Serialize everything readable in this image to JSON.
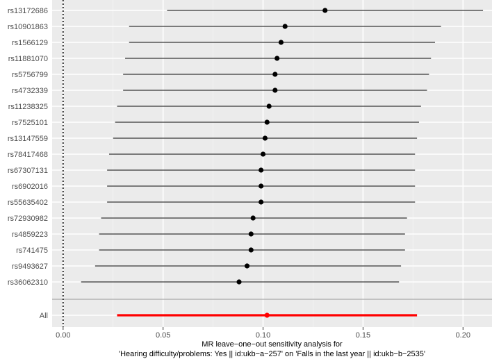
{
  "chart_data": {
    "type": "forest",
    "xlabel_line1": "MR leave−one−out sensitivity analysis for",
    "xlabel_line2": "'Hearing difficulty/problems: Yes || id:ukb−a−257' on 'Falls in the last year || id:ukb−b−2535'",
    "x_ticks": [
      0.0,
      0.05,
      0.1,
      0.15,
      0.2
    ],
    "x_tick_labels": [
      "0.00",
      "0.05",
      "0.10",
      "0.15",
      "0.20"
    ],
    "xlim": [
      -0.0055,
      0.2145
    ],
    "reference_line": 0,
    "rows": [
      {
        "label": "rs13172686",
        "estimate": 0.131,
        "lower": 0.052,
        "upper": 0.21
      },
      {
        "label": "rs10901863",
        "estimate": 0.111,
        "lower": 0.033,
        "upper": 0.189
      },
      {
        "label": "rs1566129",
        "estimate": 0.109,
        "lower": 0.033,
        "upper": 0.186
      },
      {
        "label": "rs11881070",
        "estimate": 0.107,
        "lower": 0.031,
        "upper": 0.184
      },
      {
        "label": "rs5756799",
        "estimate": 0.106,
        "lower": 0.03,
        "upper": 0.183
      },
      {
        "label": "rs4732339",
        "estimate": 0.106,
        "lower": 0.03,
        "upper": 0.182
      },
      {
        "label": "rs11238325",
        "estimate": 0.103,
        "lower": 0.027,
        "upper": 0.179
      },
      {
        "label": "rs7525101",
        "estimate": 0.102,
        "lower": 0.026,
        "upper": 0.178
      },
      {
        "label": "rs13147559",
        "estimate": 0.101,
        "lower": 0.025,
        "upper": 0.177
      },
      {
        "label": "rs78417468",
        "estimate": 0.1,
        "lower": 0.023,
        "upper": 0.176
      },
      {
        "label": "rs67307131",
        "estimate": 0.099,
        "lower": 0.022,
        "upper": 0.176
      },
      {
        "label": "rs6902016",
        "estimate": 0.099,
        "lower": 0.022,
        "upper": 0.176
      },
      {
        "label": "rs55635402",
        "estimate": 0.099,
        "lower": 0.022,
        "upper": 0.176
      },
      {
        "label": "rs72930982",
        "estimate": 0.095,
        "lower": 0.019,
        "upper": 0.172
      },
      {
        "label": "rs4859223",
        "estimate": 0.094,
        "lower": 0.018,
        "upper": 0.171
      },
      {
        "label": "rs741475",
        "estimate": 0.094,
        "lower": 0.018,
        "upper": 0.171
      },
      {
        "label": "rs9493627",
        "estimate": 0.092,
        "lower": 0.016,
        "upper": 0.169
      },
      {
        "label": "rs36062310",
        "estimate": 0.088,
        "lower": 0.009,
        "upper": 0.168
      }
    ],
    "overall": {
      "label": "All",
      "estimate": 0.102,
      "lower": 0.027,
      "upper": 0.177
    },
    "colors": {
      "panel": "#ebebeb",
      "grid_major": "#ffffff",
      "grid_minor": "#f5f5f5",
      "line": "#000000",
      "point": "#000000",
      "overall": "#ff0000",
      "separator": "#a8a8a8",
      "reference": "#000000"
    }
  }
}
